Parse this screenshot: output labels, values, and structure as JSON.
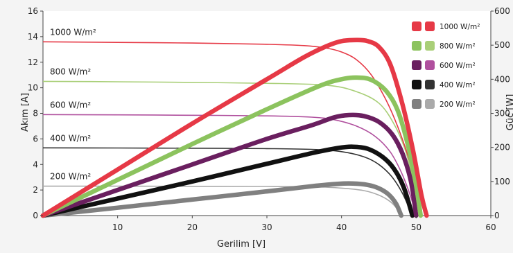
{
  "chart_data": {
    "type": "line",
    "xlabel": "Gerilim [V]",
    "ylabel_left": "Akım [A]",
    "ylabel_right": "Güç [W]",
    "xlim": [
      0,
      60
    ],
    "ylim_left": [
      0,
      16
    ],
    "ylim_right": [
      0,
      600
    ],
    "x_ticks": [
      "10",
      "20",
      "30",
      "40",
      "50",
      "60"
    ],
    "y_left_ticks": [
      "0",
      "2",
      "4",
      "6",
      "8",
      "10",
      "12",
      "14",
      "16"
    ],
    "y_right_ticks": [
      "0",
      "100",
      "200",
      "300",
      "400",
      "500",
      "600"
    ],
    "legend": {
      "position": "top-right",
      "entries": [
        "1000 W/m²",
        "800 W/m²",
        "600 W/m²",
        "400 W/m²",
        "200 W/m²"
      ]
    },
    "series": [
      {
        "name": "1000 W/m²",
        "color_current": "#e63946",
        "color_power": "#e63946",
        "isc": 13.6,
        "voc": 51.4,
        "current": [
          [
            0,
            13.6
          ],
          [
            10,
            13.55
          ],
          [
            20,
            13.5
          ],
          [
            30,
            13.4
          ],
          [
            35,
            13.3
          ],
          [
            38,
            13.1
          ],
          [
            40,
            12.8
          ],
          [
            42,
            12.2
          ],
          [
            44,
            11.0
          ],
          [
            46,
            9.0
          ],
          [
            47.5,
            7.0
          ],
          [
            49,
            4.5
          ],
          [
            50.5,
            1.5
          ],
          [
            51.4,
            0
          ]
        ],
        "power": [
          [
            0,
            0
          ],
          [
            10,
            135
          ],
          [
            20,
            270
          ],
          [
            30,
            400
          ],
          [
            35,
            465
          ],
          [
            38,
            497
          ],
          [
            40,
            512
          ],
          [
            42,
            515
          ],
          [
            43.5,
            512
          ],
          [
            45,
            495
          ],
          [
            46.5,
            445
          ],
          [
            48,
            340
          ],
          [
            49.5,
            200
          ],
          [
            50.7,
            60
          ],
          [
            51.4,
            0
          ]
        ]
      },
      {
        "name": "800 W/m²",
        "color_current": "#a9cf78",
        "color_power": "#8cc35e",
        "isc": 10.5,
        "voc": 50.6,
        "current": [
          [
            0,
            10.5
          ],
          [
            10,
            10.47
          ],
          [
            20,
            10.42
          ],
          [
            30,
            10.35
          ],
          [
            38,
            10.2
          ],
          [
            42,
            9.7
          ],
          [
            45,
            8.8
          ],
          [
            47,
            7.2
          ],
          [
            48.5,
            5.2
          ],
          [
            49.5,
            3.0
          ],
          [
            50.6,
            0
          ]
        ],
        "power": [
          [
            0,
            0
          ],
          [
            10,
            105
          ],
          [
            20,
            210
          ],
          [
            30,
            312
          ],
          [
            37,
            380
          ],
          [
            40,
            400
          ],
          [
            42,
            405
          ],
          [
            44,
            398
          ],
          [
            46,
            365
          ],
          [
            47.5,
            310
          ],
          [
            48.8,
            215
          ],
          [
            49.9,
            100
          ],
          [
            50.6,
            0
          ]
        ]
      },
      {
        "name": "600 W/m²",
        "color_current": "#b0509e",
        "color_power": "#6a1f5f",
        "isc": 7.9,
        "voc": 50.0,
        "current": [
          [
            0,
            7.9
          ],
          [
            10,
            7.88
          ],
          [
            20,
            7.85
          ],
          [
            30,
            7.8
          ],
          [
            36,
            7.7
          ],
          [
            39,
            7.5
          ],
          [
            42,
            7.0
          ],
          [
            44.5,
            6.2
          ],
          [
            46.5,
            5.0
          ],
          [
            48,
            3.4
          ],
          [
            49.2,
            1.6
          ],
          [
            50.0,
            0
          ]
        ],
        "power": [
          [
            0,
            0
          ],
          [
            10,
            75
          ],
          [
            20,
            150
          ],
          [
            30,
            225
          ],
          [
            36,
            265
          ],
          [
            39,
            288
          ],
          [
            41,
            295
          ],
          [
            43,
            292
          ],
          [
            45,
            275
          ],
          [
            46.8,
            238
          ],
          [
            48.2,
            180
          ],
          [
            49.3,
            100
          ],
          [
            50.0,
            0
          ]
        ]
      },
      {
        "name": "400 W/m²",
        "color_current": "#333333",
        "color_power": "#111111",
        "isc": 5.3,
        "voc": 49.5,
        "current": [
          [
            0,
            5.3
          ],
          [
            10,
            5.29
          ],
          [
            20,
            5.27
          ],
          [
            30,
            5.24
          ],
          [
            36,
            5.18
          ],
          [
            40,
            5.0
          ],
          [
            43,
            4.6
          ],
          [
            45,
            4.0
          ],
          [
            46.8,
            3.0
          ],
          [
            48.2,
            1.7
          ],
          [
            49.5,
            0
          ]
        ],
        "power": [
          [
            0,
            0
          ],
          [
            10,
            50
          ],
          [
            20,
            100
          ],
          [
            30,
            152
          ],
          [
            36,
            183
          ],
          [
            39.5,
            198
          ],
          [
            41.5,
            202
          ],
          [
            43.5,
            196
          ],
          [
            45.5,
            172
          ],
          [
            47,
            138
          ],
          [
            48.3,
            85
          ],
          [
            49.5,
            0
          ]
        ]
      },
      {
        "name": "200 W/m²",
        "color_current": "#aaaaaa",
        "color_power": "#808080",
        "isc": 2.3,
        "voc": 48.0,
        "current": [
          [
            0,
            2.3
          ],
          [
            10,
            2.3
          ],
          [
            20,
            2.29
          ],
          [
            30,
            2.28
          ],
          [
            36,
            2.25
          ],
          [
            40,
            2.15
          ],
          [
            43,
            1.95
          ],
          [
            45,
            1.6
          ],
          [
            46.5,
            1.1
          ],
          [
            47.5,
            0.5
          ],
          [
            48.0,
            0
          ]
        ],
        "power": [
          [
            0,
            0
          ],
          [
            10,
            23
          ],
          [
            20,
            47
          ],
          [
            30,
            71
          ],
          [
            36,
            86
          ],
          [
            39.5,
            93
          ],
          [
            41.5,
            94
          ],
          [
            43.5,
            90
          ],
          [
            45,
            80
          ],
          [
            46.3,
            62
          ],
          [
            47.3,
            35
          ],
          [
            48.0,
            0
          ]
        ]
      }
    ]
  }
}
